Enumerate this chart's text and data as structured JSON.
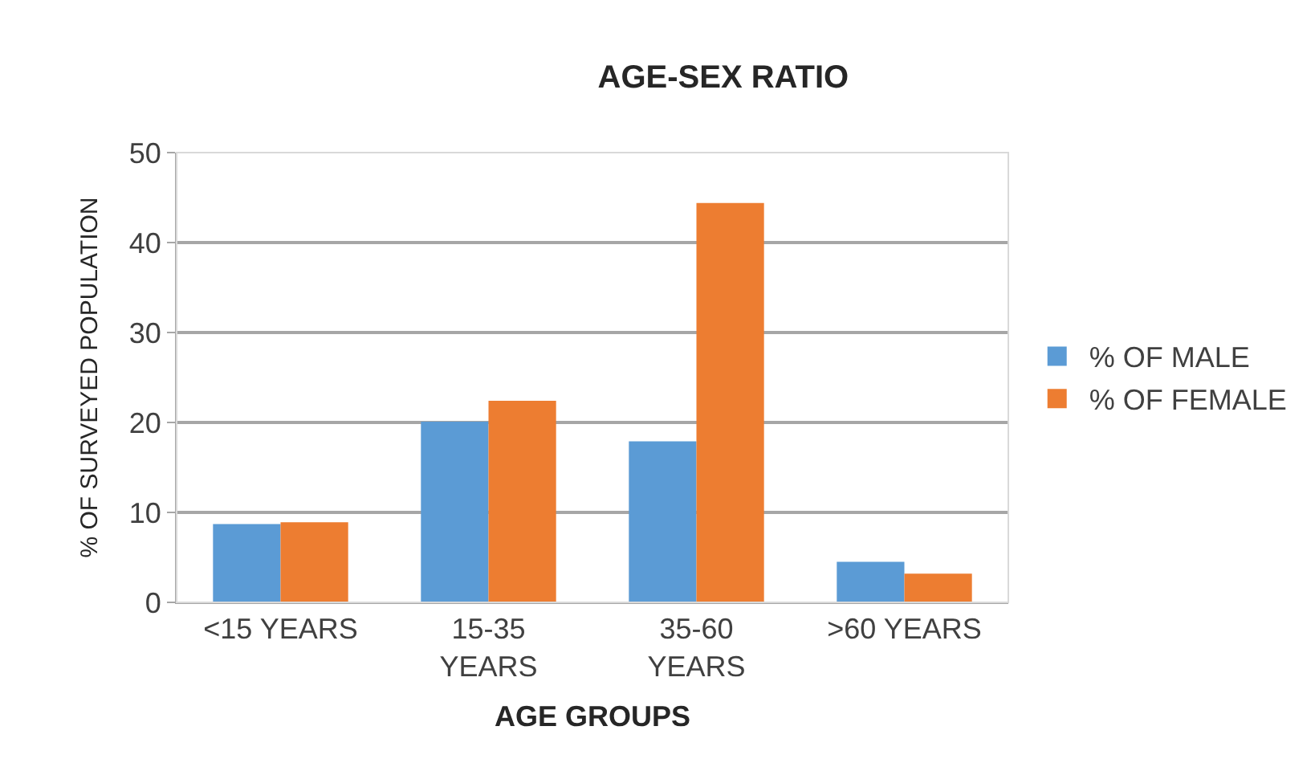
{
  "chart_data": {
    "type": "bar",
    "title": "AGE-SEX RATIO",
    "xlabel": "AGE GROUPS",
    "ylabel": "% OF SURVEYED POPULATION",
    "categories": [
      "<15 YEARS",
      "15-35\nYEARS",
      "35-60\nYEARS",
      ">60 YEARS"
    ],
    "series": [
      {
        "name": "% OF MALE",
        "color": "#5b9bd5",
        "values": [
          8.7,
          20.1,
          17.9,
          4.5
        ]
      },
      {
        "name": "% OF FEMALE",
        "color": "#ed7d31",
        "values": [
          8.9,
          22.4,
          44.4,
          3.2
        ]
      }
    ],
    "ylim": [
      0,
      50
    ],
    "yticks": [
      0,
      10,
      20,
      30,
      40,
      50
    ],
    "grid": "y",
    "legend": "right"
  }
}
